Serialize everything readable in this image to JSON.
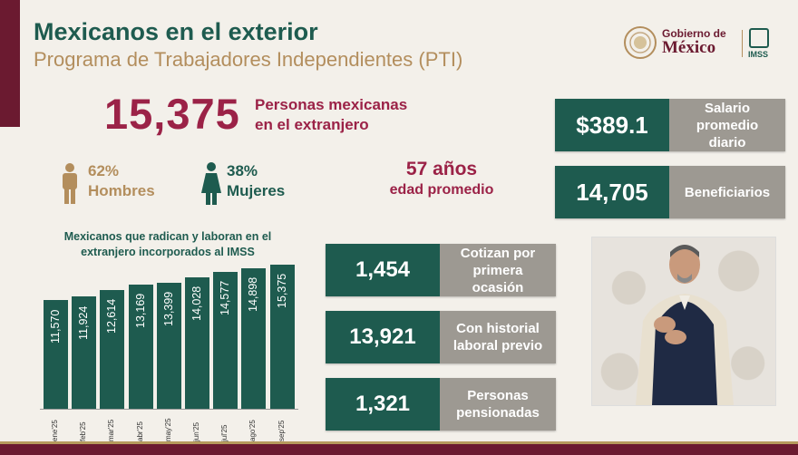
{
  "header": {
    "title": "Mexicanos en el exterior",
    "subtitle": "Programa de Trabajadores Independientes (PTI)"
  },
  "logo": {
    "line1": "Gobierno de",
    "line2": "México",
    "imss": "IMSS"
  },
  "total": {
    "value": "15,375",
    "label_line1": "Personas mexicanas",
    "label_line2": "en el extranjero"
  },
  "gender": {
    "men_pct": "62%",
    "men_label": "Hombres",
    "women_pct": "38%",
    "women_label": "Mujeres"
  },
  "age": {
    "value": "57 años",
    "label": "edad promedio"
  },
  "right_cards": [
    {
      "value": "$389.1",
      "label_lines": [
        "Salario",
        "promedio",
        "diario"
      ]
    },
    {
      "value": "14,705",
      "label_lines": [
        "Beneficiarios"
      ]
    }
  ],
  "mid_cards": [
    {
      "value": "1,454",
      "label_lines": [
        "Cotizan por",
        "primera",
        "ocasión"
      ]
    },
    {
      "value": "13,921",
      "label_lines": [
        "Con historial",
        "laboral previo"
      ]
    },
    {
      "value": "1,321",
      "label_lines": [
        "Personas",
        "pensionadas"
      ]
    }
  ],
  "colors": {
    "green": "#1e5b4f",
    "wine": "#9b2247",
    "gold": "#b38e5d",
    "gray": "#9d9992"
  },
  "chart_data": {
    "type": "bar",
    "title": "Mexicanos que radican y laboran en el extranjero incorporados al IMSS",
    "categories": [
      "ene 25",
      "feb 25",
      "mar 25",
      "abr 25",
      "may 25",
      "jun 25",
      "jul 25",
      "ago 25",
      "sep 25"
    ],
    "values": [
      11570,
      11924,
      12614,
      13169,
      13399,
      14028,
      14577,
      14898,
      15375
    ],
    "value_labels": [
      "11,570",
      "11,924",
      "12,614",
      "13,169",
      "13,399",
      "14,028",
      "14,577",
      "14,898",
      "15,375"
    ],
    "xlabel": "",
    "ylabel": "",
    "grid": false
  }
}
